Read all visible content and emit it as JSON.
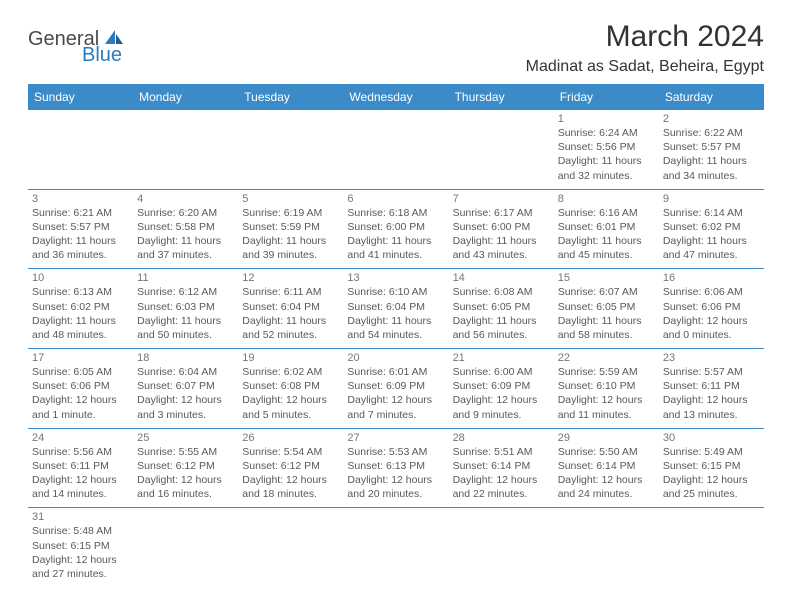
{
  "logo": {
    "part1": "General",
    "part2": "Blue"
  },
  "title": "March 2024",
  "location": "Madinat as Sadat, Beheira, Egypt",
  "colors": {
    "header_bg": "#3b8bc9",
    "header_text": "#ffffff",
    "border": "#3b8bc9",
    "daynum": "#757575",
    "detail": "#595959",
    "title_text": "#333333",
    "logo_dark": "#4a4a4a",
    "logo_blue": "#2b7bbf",
    "background": "#ffffff"
  },
  "typography": {
    "title_fontsize": 30,
    "location_fontsize": 16,
    "header_fontsize": 12,
    "daynum_fontsize": 11,
    "detail_fontsize": 10.5
  },
  "dayHeaders": [
    "Sunday",
    "Monday",
    "Tuesday",
    "Wednesday",
    "Thursday",
    "Friday",
    "Saturday"
  ],
  "weeks": [
    [
      null,
      null,
      null,
      null,
      null,
      {
        "n": "1",
        "sr": "Sunrise: 6:24 AM",
        "ss": "Sunset: 5:56 PM",
        "dl": "Daylight: 11 hours and 32 minutes."
      },
      {
        "n": "2",
        "sr": "Sunrise: 6:22 AM",
        "ss": "Sunset: 5:57 PM",
        "dl": "Daylight: 11 hours and 34 minutes."
      }
    ],
    [
      {
        "n": "3",
        "sr": "Sunrise: 6:21 AM",
        "ss": "Sunset: 5:57 PM",
        "dl": "Daylight: 11 hours and 36 minutes."
      },
      {
        "n": "4",
        "sr": "Sunrise: 6:20 AM",
        "ss": "Sunset: 5:58 PM",
        "dl": "Daylight: 11 hours and 37 minutes."
      },
      {
        "n": "5",
        "sr": "Sunrise: 6:19 AM",
        "ss": "Sunset: 5:59 PM",
        "dl": "Daylight: 11 hours and 39 minutes."
      },
      {
        "n": "6",
        "sr": "Sunrise: 6:18 AM",
        "ss": "Sunset: 6:00 PM",
        "dl": "Daylight: 11 hours and 41 minutes."
      },
      {
        "n": "7",
        "sr": "Sunrise: 6:17 AM",
        "ss": "Sunset: 6:00 PM",
        "dl": "Daylight: 11 hours and 43 minutes."
      },
      {
        "n": "8",
        "sr": "Sunrise: 6:16 AM",
        "ss": "Sunset: 6:01 PM",
        "dl": "Daylight: 11 hours and 45 minutes."
      },
      {
        "n": "9",
        "sr": "Sunrise: 6:14 AM",
        "ss": "Sunset: 6:02 PM",
        "dl": "Daylight: 11 hours and 47 minutes."
      }
    ],
    [
      {
        "n": "10",
        "sr": "Sunrise: 6:13 AM",
        "ss": "Sunset: 6:02 PM",
        "dl": "Daylight: 11 hours and 48 minutes."
      },
      {
        "n": "11",
        "sr": "Sunrise: 6:12 AM",
        "ss": "Sunset: 6:03 PM",
        "dl": "Daylight: 11 hours and 50 minutes."
      },
      {
        "n": "12",
        "sr": "Sunrise: 6:11 AM",
        "ss": "Sunset: 6:04 PM",
        "dl": "Daylight: 11 hours and 52 minutes."
      },
      {
        "n": "13",
        "sr": "Sunrise: 6:10 AM",
        "ss": "Sunset: 6:04 PM",
        "dl": "Daylight: 11 hours and 54 minutes."
      },
      {
        "n": "14",
        "sr": "Sunrise: 6:08 AM",
        "ss": "Sunset: 6:05 PM",
        "dl": "Daylight: 11 hours and 56 minutes."
      },
      {
        "n": "15",
        "sr": "Sunrise: 6:07 AM",
        "ss": "Sunset: 6:05 PM",
        "dl": "Daylight: 11 hours and 58 minutes."
      },
      {
        "n": "16",
        "sr": "Sunrise: 6:06 AM",
        "ss": "Sunset: 6:06 PM",
        "dl": "Daylight: 12 hours and 0 minutes."
      }
    ],
    [
      {
        "n": "17",
        "sr": "Sunrise: 6:05 AM",
        "ss": "Sunset: 6:06 PM",
        "dl": "Daylight: 12 hours and 1 minute."
      },
      {
        "n": "18",
        "sr": "Sunrise: 6:04 AM",
        "ss": "Sunset: 6:07 PM",
        "dl": "Daylight: 12 hours and 3 minutes."
      },
      {
        "n": "19",
        "sr": "Sunrise: 6:02 AM",
        "ss": "Sunset: 6:08 PM",
        "dl": "Daylight: 12 hours and 5 minutes."
      },
      {
        "n": "20",
        "sr": "Sunrise: 6:01 AM",
        "ss": "Sunset: 6:09 PM",
        "dl": "Daylight: 12 hours and 7 minutes."
      },
      {
        "n": "21",
        "sr": "Sunrise: 6:00 AM",
        "ss": "Sunset: 6:09 PM",
        "dl": "Daylight: 12 hours and 9 minutes."
      },
      {
        "n": "22",
        "sr": "Sunrise: 5:59 AM",
        "ss": "Sunset: 6:10 PM",
        "dl": "Daylight: 12 hours and 11 minutes."
      },
      {
        "n": "23",
        "sr": "Sunrise: 5:57 AM",
        "ss": "Sunset: 6:11 PM",
        "dl": "Daylight: 12 hours and 13 minutes."
      }
    ],
    [
      {
        "n": "24",
        "sr": "Sunrise: 5:56 AM",
        "ss": "Sunset: 6:11 PM",
        "dl": "Daylight: 12 hours and 14 minutes."
      },
      {
        "n": "25",
        "sr": "Sunrise: 5:55 AM",
        "ss": "Sunset: 6:12 PM",
        "dl": "Daylight: 12 hours and 16 minutes."
      },
      {
        "n": "26",
        "sr": "Sunrise: 5:54 AM",
        "ss": "Sunset: 6:12 PM",
        "dl": "Daylight: 12 hours and 18 minutes."
      },
      {
        "n": "27",
        "sr": "Sunrise: 5:53 AM",
        "ss": "Sunset: 6:13 PM",
        "dl": "Daylight: 12 hours and 20 minutes."
      },
      {
        "n": "28",
        "sr": "Sunrise: 5:51 AM",
        "ss": "Sunset: 6:14 PM",
        "dl": "Daylight: 12 hours and 22 minutes."
      },
      {
        "n": "29",
        "sr": "Sunrise: 5:50 AM",
        "ss": "Sunset: 6:14 PM",
        "dl": "Daylight: 12 hours and 24 minutes."
      },
      {
        "n": "30",
        "sr": "Sunrise: 5:49 AM",
        "ss": "Sunset: 6:15 PM",
        "dl": "Daylight: 12 hours and 25 minutes."
      }
    ],
    [
      {
        "n": "31",
        "sr": "Sunrise: 5:48 AM",
        "ss": "Sunset: 6:15 PM",
        "dl": "Daylight: 12 hours and 27 minutes."
      },
      null,
      null,
      null,
      null,
      null,
      null
    ]
  ]
}
